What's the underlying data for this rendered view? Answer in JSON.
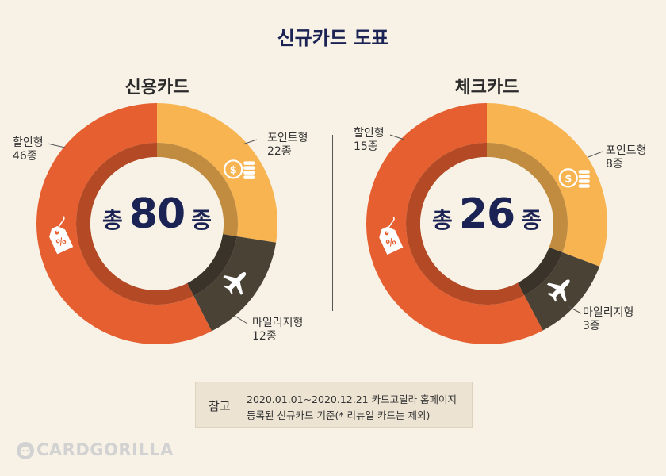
{
  "title": "신규카드 도표",
  "charts": [
    {
      "subtitle": "신용카드",
      "total_prefix": "총",
      "total_number": "80",
      "total_suffix": "종",
      "slices": [
        {
          "name": "포인트형",
          "count": "22종",
          "value": 22,
          "color": "#f7b451"
        },
        {
          "name": "마일리지형",
          "count": "12종",
          "value": 12,
          "color": "#4a4235"
        },
        {
          "name": "할인형",
          "count": "46종",
          "value": 46,
          "color": "#e55f30"
        }
      ]
    },
    {
      "subtitle": "체크카드",
      "total_prefix": "총",
      "total_number": "26",
      "total_suffix": "종",
      "slices": [
        {
          "name": "포인트형",
          "count": "8종",
          "value": 8,
          "color": "#f7b451"
        },
        {
          "name": "마일리지형",
          "count": "3종",
          "value": 3,
          "color": "#4a4235"
        },
        {
          "name": "할인형",
          "count": "15종",
          "value": 15,
          "color": "#e55f30"
        }
      ]
    }
  ],
  "chart_data": [
    {
      "type": "pie",
      "title": "신용카드",
      "categories": [
        "포인트형",
        "마일리지형",
        "할인형"
      ],
      "values": [
        22,
        12,
        46
      ]
    },
    {
      "type": "pie",
      "title": "체크카드",
      "categories": [
        "포인트형",
        "마일리지형",
        "할인형"
      ],
      "values": [
        8,
        3,
        15
      ]
    }
  ],
  "note": {
    "label": "참고",
    "line1": "2020.01.01~2020.12.21 카드고릴라 홈페이지",
    "line2": "등록된 신규카드 기준(* 리뉴얼 카드는 제외)"
  },
  "brand": "CARDGORILLA",
  "icons": {
    "coins": "coins-icon",
    "airplane": "airplane-icon",
    "tag": "price-tag-icon"
  },
  "colors": {
    "title": "#1b2354",
    "background": "#f8f2e6"
  }
}
